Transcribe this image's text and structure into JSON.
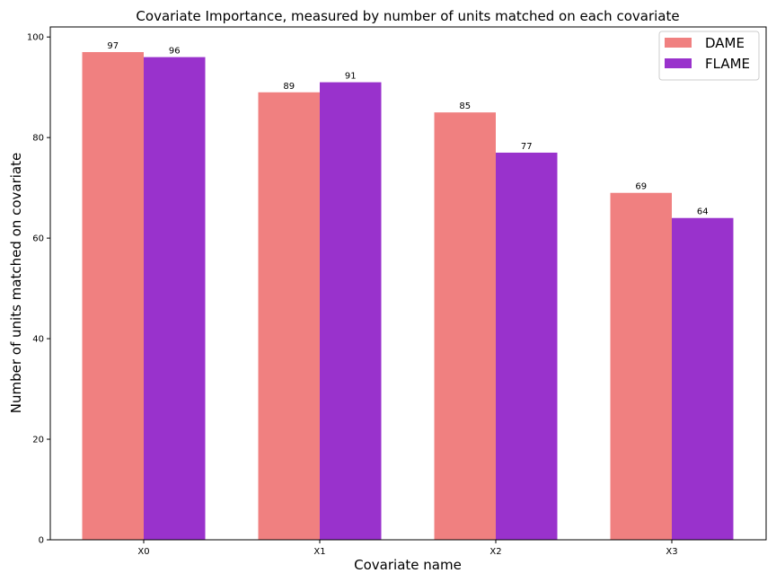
{
  "chart_data": {
    "type": "bar",
    "title": "Covariate Importance, measured by number of units matched on each covariate",
    "xlabel": "Covariate name",
    "ylabel": "Number of units matched on covariate",
    "categories": [
      "X0",
      "X1",
      "X2",
      "X3"
    ],
    "series": [
      {
        "name": "DAME",
        "values": [
          97,
          89,
          85,
          69
        ],
        "color": "#f08080"
      },
      {
        "name": "FLAME",
        "values": [
          96,
          91,
          77,
          64
        ],
        "color": "#9932cc"
      }
    ],
    "ylim": [
      0,
      102
    ],
    "yticks": [
      0,
      20,
      40,
      60,
      80,
      100
    ],
    "grid": false,
    "legend_position": "top-right",
    "show_value_labels": true
  }
}
